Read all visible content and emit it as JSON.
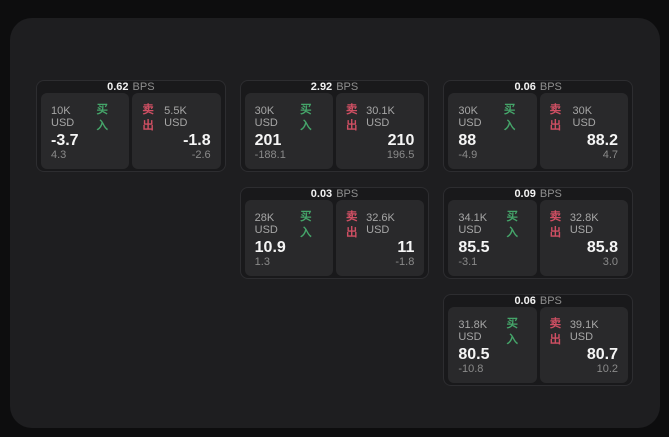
{
  "labels": {
    "bps_unit": "BPS",
    "buy": "买入",
    "sell": "卖出"
  },
  "colors": {
    "buy_green": "#45a56a",
    "sell_red": "#cf4f63",
    "panel_bg": "#1e1e20",
    "card_bg": "#19191b",
    "tile_bg": "#29292b"
  },
  "cards": [
    {
      "bps": "0.62",
      "buy": {
        "amount": "10K USD",
        "value": "-3.7",
        "delta": "4.3"
      },
      "sell": {
        "amount": "5.5K USD",
        "value": "-1.8",
        "delta": "-2.6"
      }
    },
    {
      "bps": "2.92",
      "buy": {
        "amount": "30K USD",
        "value": "201",
        "delta": "-188.1"
      },
      "sell": {
        "amount": "30.1K USD",
        "value": "210",
        "delta": "196.5"
      }
    },
    {
      "bps": "0.06",
      "buy": {
        "amount": "30K USD",
        "value": "88",
        "delta": "-4.9"
      },
      "sell": {
        "amount": "30K USD",
        "value": "88.2",
        "delta": "4.7"
      }
    },
    {
      "bps": "0.03",
      "buy": {
        "amount": "28K USD",
        "value": "10.9",
        "delta": "1.3"
      },
      "sell": {
        "amount": "32.6K USD",
        "value": "11",
        "delta": "-1.8"
      }
    },
    {
      "bps": "0.09",
      "buy": {
        "amount": "34.1K USD",
        "value": "85.5",
        "delta": "-3.1"
      },
      "sell": {
        "amount": "32.8K USD",
        "value": "85.8",
        "delta": "3.0"
      }
    },
    {
      "bps": "0.06",
      "buy": {
        "amount": "31.8K USD",
        "value": "80.5",
        "delta": "-10.8"
      },
      "sell": {
        "amount": "39.1K USD",
        "value": "80.7",
        "delta": "10.2"
      }
    }
  ]
}
